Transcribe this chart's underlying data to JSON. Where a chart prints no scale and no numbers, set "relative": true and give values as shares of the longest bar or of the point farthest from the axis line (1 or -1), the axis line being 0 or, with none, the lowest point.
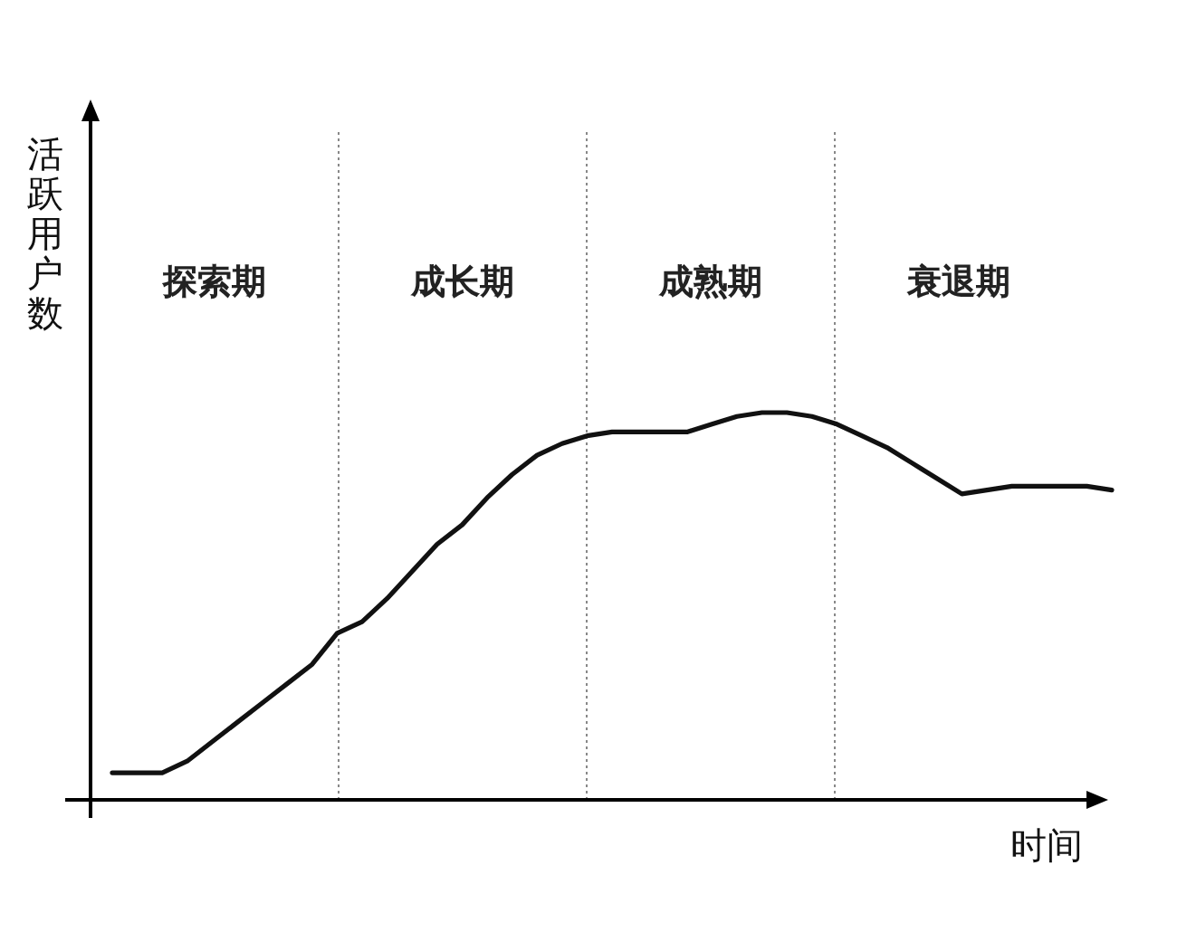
{
  "chart_data": {
    "type": "line",
    "relative": true,
    "xlabel": "时间",
    "ylabel": "活跃用户数",
    "line_style": "solid",
    "grid": "x",
    "annotations": [
      "探索期",
      "成长期",
      "成熟期",
      "衰退期"
    ],
    "categories": [
      null,
      null,
      null,
      null,
      null,
      null,
      null,
      null,
      null,
      null,
      null,
      null,
      null,
      null,
      null,
      null,
      null,
      null,
      null,
      null,
      null,
      null,
      null,
      null,
      null,
      null,
      null,
      null,
      null,
      null,
      null,
      null,
      null,
      null,
      null,
      null,
      null,
      null,
      null,
      null,
      null
    ],
    "series": [
      {
        "color": "#111111",
        "values": [
          0.07,
          0.07,
          0.07,
          0.1,
          0.15,
          0.2,
          0.25,
          0.3,
          0.35,
          0.43,
          0.46,
          0.52,
          0.59,
          0.66,
          0.71,
          0.78,
          0.84,
          0.89,
          0.92,
          0.94,
          0.95,
          0.95,
          0.95,
          0.95,
          0.97,
          0.99,
          1.0,
          1.0,
          0.99,
          0.97,
          0.94,
          0.91,
          0.87,
          0.83,
          0.79,
          0.8,
          0.81,
          0.81,
          0.81,
          0.81,
          0.8
        ]
      }
    ]
  }
}
